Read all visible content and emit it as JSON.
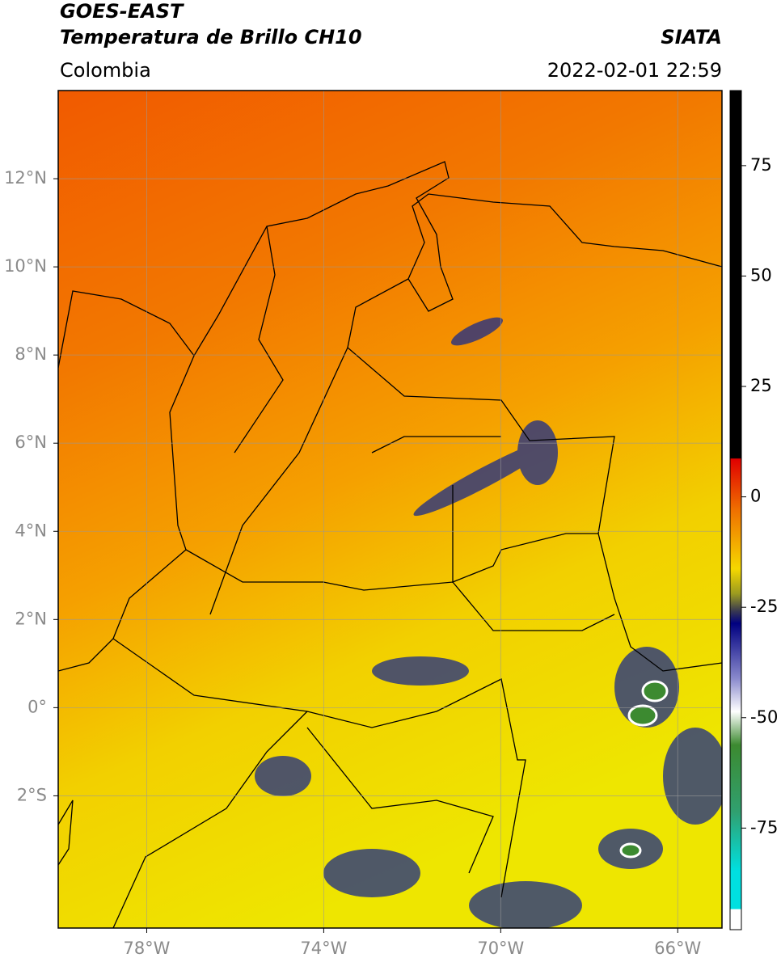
{
  "header": {
    "satellite": "GOES-EAST",
    "product": "Temperatura de Brillo CH10",
    "source": "SIATA",
    "region": "Colombia",
    "datetime": "2022-02-01 22:59"
  },
  "map": {
    "xlim": [
      -80,
      -65
    ],
    "ylim": [
      -5,
      14
    ],
    "xticks": [
      {
        "value": -78,
        "label": "78°W"
      },
      {
        "value": -74,
        "label": "74°W"
      },
      {
        "value": -70,
        "label": "70°W"
      },
      {
        "value": -66,
        "label": "66°W"
      }
    ],
    "yticks": [
      {
        "value": 12,
        "label": "12°N"
      },
      {
        "value": 10,
        "label": "10°N"
      },
      {
        "value": 8,
        "label": "8°N"
      },
      {
        "value": 6,
        "label": "6°N"
      },
      {
        "value": 4,
        "label": "4°N"
      },
      {
        "value": 2,
        "label": "2°N"
      },
      {
        "value": 0,
        "label": "0°"
      },
      {
        "value": -2,
        "label": "2°S"
      }
    ],
    "grid": true
  },
  "colorbar": {
    "lim": [
      -98,
      92
    ],
    "ticks": [
      75,
      50,
      25,
      0,
      -25,
      -50,
      -75
    ]
  }
}
